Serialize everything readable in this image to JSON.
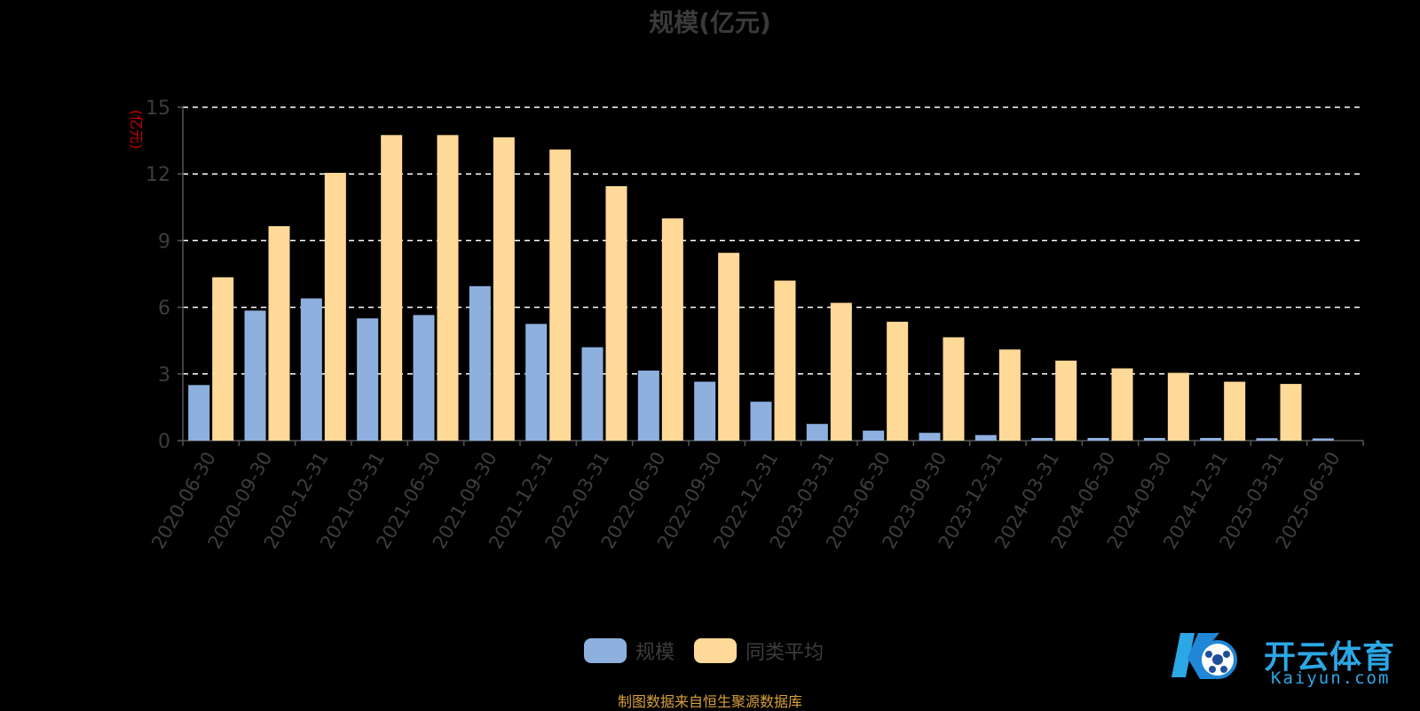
{
  "chart_data": {
    "type": "bar",
    "title": "规模(亿元)",
    "ylabel": "(亿元)",
    "xlabel": "",
    "ylim": [
      0,
      15
    ],
    "yticks": [
      0,
      3,
      6,
      9,
      12,
      15
    ],
    "grid": true,
    "legend_position": "bottom-center",
    "categories": [
      "2020-06-30",
      "2020-09-30",
      "2020-12-31",
      "2021-03-31",
      "2021-06-30",
      "2021-09-30",
      "2021-12-31",
      "2022-03-31",
      "2022-06-30",
      "2022-09-30",
      "2022-12-31",
      "2023-03-31",
      "2023-06-30",
      "2023-09-30",
      "2023-12-31",
      "2024-03-31",
      "2024-06-30",
      "2024-09-30",
      "2024-12-31",
      "2025-03-31",
      "2025-06-30"
    ],
    "series": [
      {
        "name": "规模",
        "color": "#8eb0df",
        "values": [
          2.5,
          5.85,
          6.4,
          5.5,
          5.65,
          6.95,
          5.25,
          4.2,
          3.15,
          2.65,
          1.75,
          0.75,
          0.45,
          0.35,
          0.25,
          0.12,
          0.12,
          0.12,
          0.12,
          0.11,
          0.1
        ]
      },
      {
        "name": "同类平均",
        "color": "#ffd997",
        "values": [
          7.35,
          9.65,
          12.05,
          13.75,
          13.75,
          13.65,
          13.1,
          11.45,
          10.0,
          8.45,
          7.2,
          6.2,
          5.35,
          4.65,
          4.1,
          3.6,
          3.25,
          3.05,
          2.65,
          2.55,
          null
        ]
      }
    ]
  },
  "footer": {
    "source": "制图数据来自恒生聚源数据库"
  },
  "watermark": {
    "brand": "开云体育",
    "url": "Kaiyun.com"
  },
  "colors": {
    "background": "#000000",
    "axis_text": "#3d3d3d",
    "ylabel": "#cc0000",
    "grid": "#ffffff",
    "source": "#d7a13c",
    "logo": "#2ca7e6"
  }
}
